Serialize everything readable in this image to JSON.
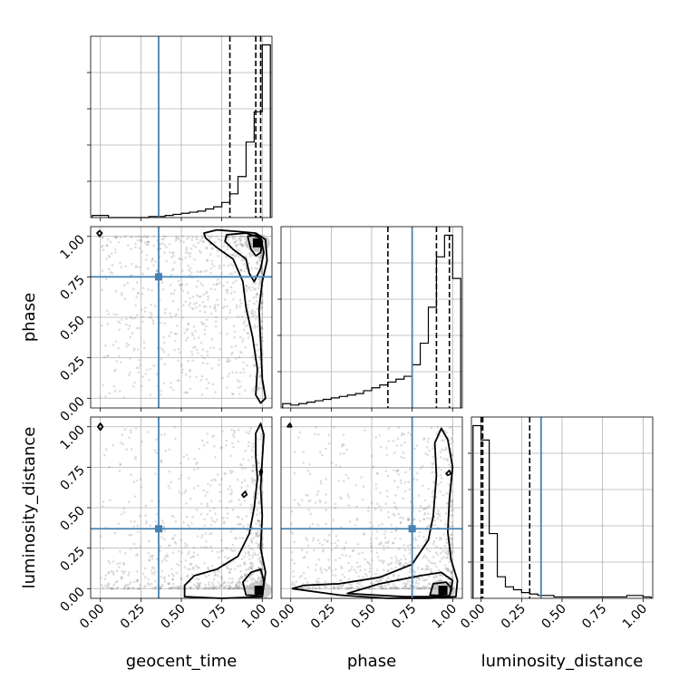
{
  "chart_data": {
    "type": "corner",
    "parameters": [
      "geocent_time",
      "phase",
      "luminosity_distance"
    ],
    "tick_labels": [
      "0.00",
      "0.25",
      "0.50",
      "0.75",
      "1.00"
    ],
    "tick_values": [
      0.0,
      0.25,
      0.5,
      0.75,
      1.0
    ],
    "axis_range": [
      -0.06,
      1.06
    ],
    "grid": true,
    "truths": {
      "color": "#4682b4",
      "values": [
        0.36,
        0.75,
        0.37
      ]
    },
    "quantiles": {
      "geocent_time": [
        0.8,
        0.96,
        0.99
      ],
      "phase": [
        0.6,
        0.9,
        0.98
      ],
      "luminosity_distance": [
        0.0,
        0.01,
        0.3
      ]
    },
    "histograms": {
      "geocent_time": {
        "bin_edges": [
          -0.05,
          0.0,
          0.05,
          0.1,
          0.15,
          0.2,
          0.25,
          0.3,
          0.35,
          0.4,
          0.45,
          0.5,
          0.55,
          0.6,
          0.65,
          0.7,
          0.75,
          0.8,
          0.85,
          0.9,
          0.95,
          1.0,
          1.05
        ],
        "counts": [
          2,
          2,
          0,
          0,
          0,
          0,
          0,
          1,
          1,
          2,
          3,
          4,
          5,
          6,
          8,
          10,
          14,
          22,
          38,
          70,
          98,
          160,
          0
        ]
      },
      "phase": {
        "bin_edges": [
          -0.05,
          0.0,
          0.05,
          0.1,
          0.15,
          0.2,
          0.25,
          0.3,
          0.35,
          0.4,
          0.45,
          0.5,
          0.55,
          0.6,
          0.65,
          0.7,
          0.75,
          0.8,
          0.85,
          0.9,
          0.95,
          1.0,
          1.05
        ],
        "counts": [
          3,
          2,
          3,
          4,
          5,
          6,
          7,
          8,
          9,
          10,
          12,
          14,
          16,
          18,
          20,
          22,
          30,
          45,
          70,
          105,
          120,
          90,
          0
        ]
      },
      "luminosity_distance": {
        "bin_edges": [
          -0.05,
          0.0,
          0.05,
          0.1,
          0.15,
          0.2,
          0.25,
          0.3,
          0.35,
          0.4,
          0.45,
          0.5,
          0.55,
          0.6,
          0.65,
          0.7,
          0.75,
          0.8,
          0.85,
          0.9,
          0.95,
          1.0,
          1.05
        ],
        "counts": [
          120,
          110,
          45,
          15,
          8,
          6,
          4,
          3,
          2,
          2,
          1,
          1,
          1,
          1,
          1,
          1,
          1,
          1,
          1,
          2,
          2,
          1,
          0
        ]
      }
    },
    "pairs": [
      {
        "x": "geocent_time",
        "y": "phase",
        "dense_peak": [
          0.97,
          0.96
        ],
        "contours": [
          [
            [
              0.64,
              1.02
            ],
            [
              0.72,
              1.04
            ],
            [
              0.85,
              1.03
            ],
            [
              0.96,
              1.02
            ],
            [
              1.02,
              0.98
            ],
            [
              1.03,
              0.85
            ],
            [
              1.0,
              0.72
            ],
            [
              0.98,
              0.55
            ],
            [
              0.99,
              0.35
            ],
            [
              1.0,
              0.12
            ],
            [
              1.02,
              0.0
            ],
            [
              0.99,
              -0.03
            ],
            [
              0.96,
              0.02
            ],
            [
              0.97,
              0.18
            ],
            [
              0.94,
              0.38
            ],
            [
              0.9,
              0.56
            ],
            [
              0.88,
              0.72
            ],
            [
              0.82,
              0.86
            ],
            [
              0.72,
              0.93
            ],
            [
              0.65,
              0.99
            ]
          ],
          [
            [
              0.78,
              1.01
            ],
            [
              0.9,
              1.02
            ],
            [
              0.99,
              0.99
            ],
            [
              1.01,
              0.9
            ],
            [
              0.99,
              0.8
            ],
            [
              0.95,
              0.72
            ],
            [
              0.92,
              0.77
            ],
            [
              0.9,
              0.86
            ],
            [
              0.82,
              0.92
            ],
            [
              0.77,
              0.97
            ]
          ],
          [
            [
              0.91,
              1.0
            ],
            [
              0.97,
              1.01
            ],
            [
              1.0,
              0.97
            ],
            [
              0.99,
              0.9
            ],
            [
              0.96,
              0.88
            ],
            [
              0.93,
              0.92
            ]
          ],
          [
            [
              -0.02,
              1.02
            ],
            [
              -0.005,
              1.035
            ],
            [
              0.01,
              1.02
            ],
            [
              -0.005,
              1.0
            ]
          ]
        ]
      },
      {
        "x": "geocent_time",
        "y": "luminosity_distance",
        "dense_peak": [
          0.98,
          -0.01
        ],
        "contours": [
          [
            [
              0.52,
              -0.05
            ],
            [
              0.75,
              -0.06
            ],
            [
              1.0,
              -0.05
            ],
            [
              1.02,
              0.1
            ],
            [
              0.99,
              0.25
            ],
            [
              1.0,
              0.45
            ],
            [
              0.99,
              0.62
            ],
            [
              1.0,
              0.8
            ],
            [
              1.01,
              0.95
            ],
            [
              0.99,
              1.02
            ],
            [
              0.96,
              0.96
            ],
            [
              0.96,
              0.82
            ],
            [
              0.97,
              0.68
            ],
            [
              0.95,
              0.5
            ],
            [
              0.92,
              0.34
            ],
            [
              0.85,
              0.2
            ],
            [
              0.72,
              0.12
            ],
            [
              0.58,
              0.08
            ],
            [
              0.52,
              0.02
            ]
          ],
          [
            [
              0.9,
              -0.04
            ],
            [
              1.0,
              -0.045
            ],
            [
              1.01,
              0.05
            ],
            [
              0.99,
              0.12
            ],
            [
              0.93,
              0.1
            ],
            [
              0.88,
              0.04
            ]
          ],
          [
            [
              -0.015,
              1.0
            ],
            [
              0.0,
              1.02
            ],
            [
              0.015,
              1.0
            ],
            [
              0.0,
              0.98
            ]
          ],
          [
            [
              0.875,
              0.58
            ],
            [
              0.895,
              0.6
            ],
            [
              0.905,
              0.58
            ],
            [
              0.885,
              0.565
            ]
          ],
          [
            [
              0.985,
              0.72
            ],
            [
              0.995,
              0.74
            ],
            [
              1.0,
              0.72
            ],
            [
              0.99,
              0.7
            ]
          ]
        ]
      },
      {
        "x": "phase",
        "y": "luminosity_distance",
        "dense_peak": [
          0.94,
          -0.01
        ],
        "contours": [
          [
            [
              0.01,
              0.0
            ],
            [
              0.3,
              -0.04
            ],
            [
              0.6,
              -0.06
            ],
            [
              0.85,
              -0.06
            ],
            [
              1.02,
              -0.05
            ],
            [
              1.03,
              0.05
            ],
            [
              0.99,
              0.18
            ],
            [
              0.97,
              0.35
            ],
            [
              0.98,
              0.55
            ],
            [
              1.0,
              0.75
            ],
            [
              0.97,
              0.92
            ],
            [
              0.93,
              0.99
            ],
            [
              0.89,
              0.9
            ],
            [
              0.9,
              0.7
            ],
            [
              0.88,
              0.45
            ],
            [
              0.85,
              0.3
            ],
            [
              0.75,
              0.15
            ],
            [
              0.55,
              0.07
            ],
            [
              0.3,
              0.03
            ],
            [
              0.08,
              0.02
            ]
          ],
          [
            [
              0.35,
              -0.03
            ],
            [
              0.7,
              -0.05
            ],
            [
              0.98,
              -0.05
            ],
            [
              1.0,
              0.05
            ],
            [
              0.93,
              0.1
            ],
            [
              0.8,
              0.08
            ],
            [
              0.55,
              0.03
            ]
          ],
          [
            [
              0.86,
              -0.04
            ],
            [
              0.98,
              -0.045
            ],
            [
              0.995,
              0.0
            ],
            [
              0.96,
              0.04
            ],
            [
              0.88,
              0.03
            ]
          ],
          [
            [
              -0.02,
              1.0
            ],
            [
              -0.005,
              1.02
            ],
            [
              0.005,
              1.0
            ]
          ],
          [
            [
              0.96,
              0.71
            ],
            [
              0.98,
              0.73
            ],
            [
              0.99,
              0.71
            ],
            [
              0.97,
              0.7
            ]
          ]
        ]
      }
    ]
  }
}
